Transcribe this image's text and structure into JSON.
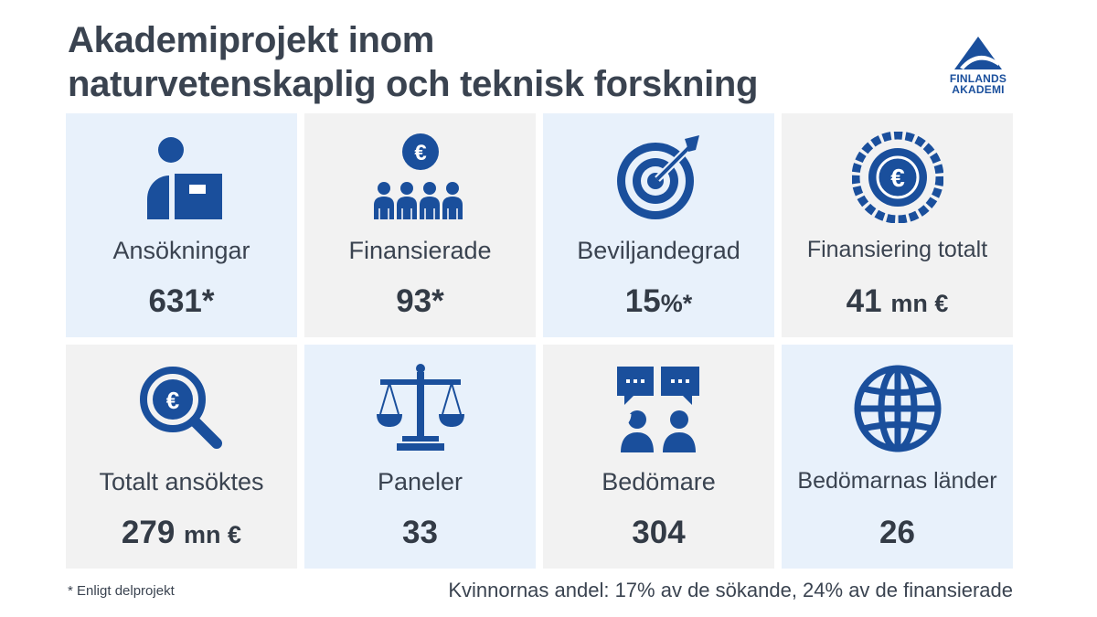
{
  "title_line1": "Akademiprojekt inom",
  "title_line2": "naturvetenskaplig och teknisk forskning",
  "logo": {
    "line1": "FINLANDS",
    "line2": "AKADEMI",
    "icon": "triangle-logo-icon"
  },
  "colors": {
    "icon": "#1a4f9c",
    "tile_blue": "#e8f1fb",
    "tile_gray": "#f2f2f2",
    "text": "#3a4350"
  },
  "tiles": [
    {
      "label": "Ansökningar",
      "value": "631*",
      "unit": "",
      "icon": "person-application-icon"
    },
    {
      "label": "Finansierade",
      "value": "93*",
      "unit": "",
      "icon": "euro-group-icon"
    },
    {
      "label": "Beviljandegrad",
      "value": "15",
      "unit": "%*",
      "icon": "target-icon"
    },
    {
      "label": "Finansiering totalt",
      "value": "41",
      "unit": "mn €",
      "icon": "euro-coin-icon"
    },
    {
      "label": "Totalt ansöktes",
      "value": "279",
      "unit": "mn €",
      "icon": "euro-search-icon"
    },
    {
      "label": "Paneler",
      "value": "33",
      "unit": "",
      "icon": "scales-icon"
    },
    {
      "label": "Bedömare",
      "value": "304",
      "unit": "",
      "icon": "reviewers-icon"
    },
    {
      "label": "Bedömarnas länder",
      "value": "26",
      "unit": "",
      "icon": "globe-icon"
    }
  ],
  "footnote": "* Enligt delprojekt",
  "women_share": "Kvinnornas andel:  17% av de sökande,  24% av de finansierade"
}
